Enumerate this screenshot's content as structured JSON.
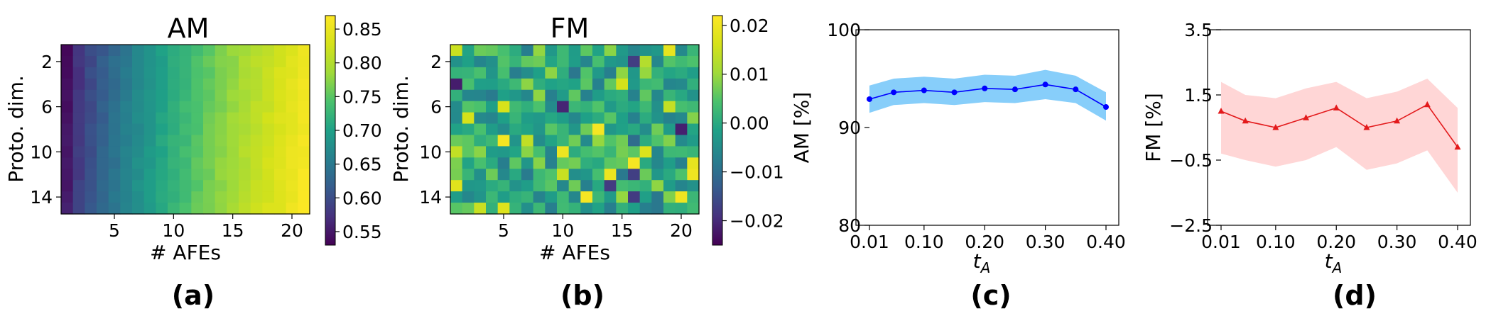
{
  "chart_data": [
    {
      "type": "heatmap",
      "title": "AM",
      "panel_label": "(a)",
      "xlabel": "# AFEs",
      "ylabel": "Proto. dim.",
      "x_ticks": [
        5,
        10,
        15,
        20
      ],
      "y_ticks": [
        2,
        6,
        10,
        14
      ],
      "n_cols": 21,
      "n_rows": 15,
      "x_range": [
        1,
        21
      ],
      "y_range": [
        1,
        15
      ],
      "colorbar": {
        "min": 0.53,
        "max": 0.87,
        "ticks": [
          0.55,
          0.6,
          0.65,
          0.7,
          0.75,
          0.8,
          0.85
        ],
        "tick_labels": [
          "0.55",
          "0.60",
          "0.65",
          "0.70",
          "0.75",
          "0.80",
          "0.85"
        ]
      },
      "trend": "value increases from ~0.54 at 1 AFE to ~0.86 at 21 AFEs; slightly higher for larger proto. dim."
    },
    {
      "type": "heatmap",
      "title": "FM",
      "panel_label": "(b)",
      "xlabel": "# AFEs",
      "ylabel": "Proto. dim.",
      "x_ticks": [
        5,
        10,
        15,
        20
      ],
      "y_ticks": [
        2,
        6,
        10,
        14
      ],
      "n_cols": 21,
      "n_rows": 15,
      "x_range": [
        1,
        21
      ],
      "y_range": [
        1,
        15
      ],
      "colorbar": {
        "min": -0.025,
        "max": 0.022,
        "ticks": [
          -0.02,
          -0.01,
          0.0,
          0.01,
          0.02
        ],
        "tick_labels": [
          "−0.02",
          "−0.01",
          "0.00",
          "0.01",
          "0.02"
        ]
      },
      "trend": "noisy values centered near 0.00, mostly between -0.01 and 0.01"
    },
    {
      "type": "line",
      "panel_label": "(c)",
      "xlabel": "t_A",
      "xlabel_main": "t",
      "xlabel_sub": "A",
      "ylabel": "AM [%]",
      "x": [
        0.01,
        0.05,
        0.1,
        0.15,
        0.2,
        0.25,
        0.3,
        0.35,
        0.4
      ],
      "xlim": [
        0.01,
        0.4
      ],
      "x_ticks": [
        0.01,
        0.1,
        0.2,
        0.3,
        0.4
      ],
      "x_tick_labels": [
        "0.01",
        "0.10",
        "0.20",
        "0.30",
        "0.40"
      ],
      "ylim": [
        80,
        100
      ],
      "y_ticks": [
        80,
        90,
        100
      ],
      "series": [
        {
          "name": "AM",
          "values": [
            92.9,
            93.6,
            93.8,
            93.6,
            94.0,
            93.9,
            94.4,
            93.9,
            92.1
          ],
          "lower": [
            91.5,
            92.3,
            92.5,
            92.3,
            92.6,
            92.5,
            92.9,
            92.5,
            90.7
          ],
          "upper": [
            94.3,
            95.0,
            95.2,
            95.0,
            95.4,
            95.3,
            95.9,
            95.3,
            93.6
          ],
          "color": "#0000ff",
          "band_color": "#87cefa",
          "marker": "circle"
        }
      ]
    },
    {
      "type": "line",
      "panel_label": "(d)",
      "xlabel": "t_A",
      "xlabel_main": "t",
      "xlabel_sub": "A",
      "ylabel": "FM [%]",
      "x": [
        0.01,
        0.05,
        0.1,
        0.15,
        0.2,
        0.25,
        0.3,
        0.35,
        0.4
      ],
      "xlim": [
        0.01,
        0.4
      ],
      "x_ticks": [
        0.01,
        0.1,
        0.2,
        0.3,
        0.4
      ],
      "x_tick_labels": [
        "0.01",
        "0.10",
        "0.20",
        "0.30",
        "0.40"
      ],
      "ylim": [
        -2.5,
        3.5
      ],
      "y_ticks": [
        -2.5,
        -0.5,
        1.5,
        3.5
      ],
      "y_tick_labels": [
        "−2.5",
        "−0.5",
        "1.5",
        "3.5"
      ],
      "series": [
        {
          "name": "FM",
          "values": [
            1.0,
            0.7,
            0.5,
            0.8,
            1.1,
            0.5,
            0.7,
            1.2,
            -0.1
          ],
          "lower": [
            -0.3,
            -0.5,
            -0.7,
            -0.5,
            -0.1,
            -0.8,
            -0.6,
            -0.2,
            -1.5
          ],
          "upper": [
            1.9,
            1.5,
            1.4,
            1.7,
            1.9,
            1.4,
            1.6,
            2.0,
            1.1
          ],
          "color": "#e31a1c",
          "band_color": "#ffd6d6",
          "marker": "triangle"
        }
      ]
    }
  ]
}
